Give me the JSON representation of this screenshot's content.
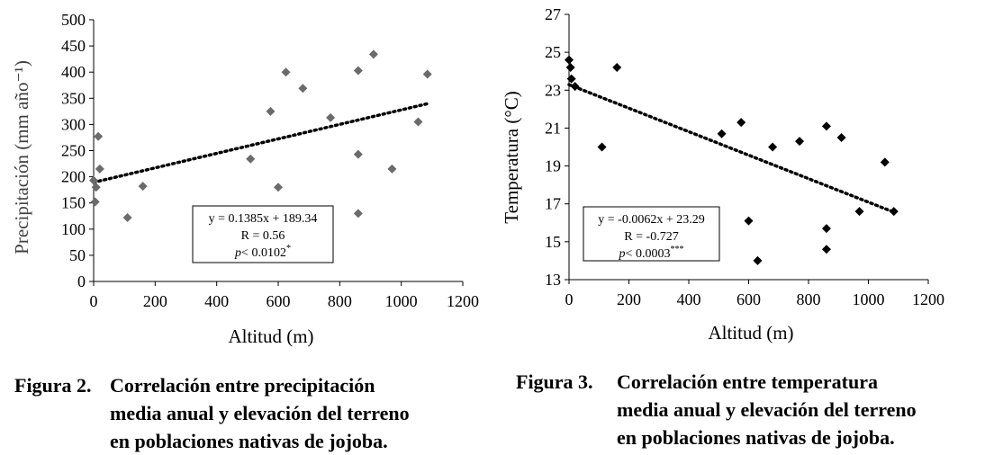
{
  "figures": [
    {
      "caption_number": "Figura 2.",
      "caption_lines": [
        "Correlación entre precipitación",
        "media anual y elevación del terreno",
        "en poblaciones nativas de jojoba."
      ]
    },
    {
      "caption_number": "Figura 3.",
      "caption_lines": [
        "Correlación entre temperatura",
        "media anual y elevación del terreno",
        "en poblaciones nativas de jojoba."
      ]
    }
  ],
  "chart_data": [
    {
      "type": "scatter",
      "xlabel": "Altitud (m)",
      "ylabel": "Precipitación (mm año⁻¹)",
      "xlim": [
        0,
        1200
      ],
      "ylim": [
        0,
        500
      ],
      "x_ticks": [
        0,
        200,
        400,
        600,
        800,
        1000,
        1200
      ],
      "y_ticks": [
        0,
        50,
        100,
        150,
        200,
        250,
        300,
        350,
        400,
        450,
        500
      ],
      "grid": false,
      "marker_color": "#6b6b6b",
      "marker": "diamond",
      "series": [
        {
          "x": [
            0,
            5,
            8,
            15,
            20,
            110,
            160,
            510,
            575,
            600,
            625,
            680,
            770,
            860,
            860,
            860,
            910,
            970,
            1055,
            1085
          ],
          "y": [
            193,
            152,
            180,
            277,
            215,
            122,
            182,
            234,
            325,
            180,
            400,
            369,
            313,
            403,
            243,
            130,
            434,
            215,
            305,
            396
          ]
        }
      ],
      "trendline": {
        "slope": 0.1385,
        "intercept": 189.34,
        "x_range": [
          0,
          1085
        ],
        "style": "dotted"
      },
      "annotation": {
        "equation": "y = 0.1385x + 189.34",
        "r": "R = 0.56",
        "p_italic": "p",
        "p_rest": "< 0.0102",
        "p_sup": "*"
      }
    },
    {
      "type": "scatter",
      "xlabel": "Altitud (m)",
      "ylabel": "Temperatura (°C)",
      "xlim": [
        0,
        1200
      ],
      "ylim": [
        13,
        27
      ],
      "x_ticks": [
        0,
        200,
        400,
        600,
        800,
        1000,
        1200
      ],
      "y_ticks": [
        13,
        15,
        17,
        19,
        21,
        23,
        25,
        27
      ],
      "grid": false,
      "marker_color": "#000000",
      "marker": "diamond",
      "series": [
        {
          "x": [
            0,
            5,
            8,
            20,
            110,
            160,
            510,
            575,
            600,
            630,
            680,
            770,
            860,
            860,
            860,
            910,
            970,
            1055,
            1085
          ],
          "y": [
            24.6,
            24.2,
            23.6,
            23.2,
            20.0,
            24.2,
            20.7,
            21.3,
            16.1,
            14.0,
            20.0,
            20.3,
            21.1,
            15.7,
            14.6,
            20.5,
            16.6,
            19.2,
            16.6
          ]
        }
      ],
      "trendline": {
        "slope": -0.0062,
        "intercept": 23.29,
        "x_range": [
          0,
          1085
        ],
        "style": "dotted"
      },
      "annotation": {
        "equation": "y = -0.0062x + 23.29",
        "r": "R =  -0.727",
        "p_italic": "p",
        "p_rest": "< 0.0003",
        "p_sup": "***"
      }
    }
  ]
}
